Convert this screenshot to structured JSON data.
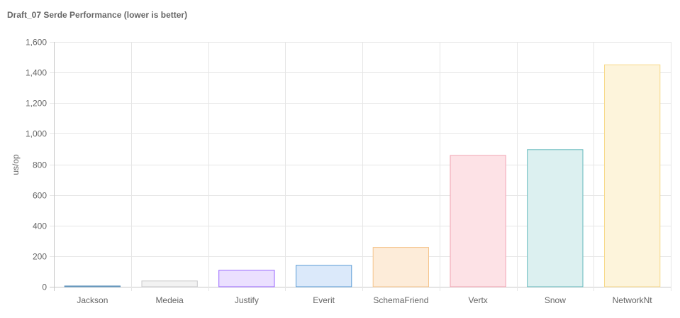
{
  "chart_data": {
    "type": "bar",
    "title": "Draft_07 Serde Performance (lower is better)",
    "xlabel": "",
    "ylabel": "us/op",
    "ylim": [
      0,
      1600
    ],
    "yticks": [
      0,
      200,
      400,
      600,
      800,
      1000,
      1200,
      1400,
      1600
    ],
    "ytick_labels": [
      "0",
      "200",
      "400",
      "600",
      "800",
      "1,000",
      "1,200",
      "1,400",
      "1,600"
    ],
    "grid": true,
    "categories": [
      "Jackson",
      "Medeia",
      "Justify",
      "Everit",
      "SchemaFriend",
      "Vertx",
      "Snow",
      "NetworkNt"
    ],
    "values": [
      5,
      38,
      108,
      140,
      257,
      858,
      896,
      1450
    ],
    "colors": {
      "fill": [
        "#c9dff0",
        "#f2f2f2",
        "#ebe0ff",
        "#dbe9fa",
        "#fdecd9",
        "#fde2e6",
        "#dcf0f0",
        "#fdf4db"
      ],
      "border": [
        "#5b8fb9",
        "#c9c9cb",
        "#9966ff",
        "#5a9bd5",
        "#f5c48c",
        "#f1a4b2",
        "#63b9bd",
        "#f7d98a"
      ]
    }
  }
}
